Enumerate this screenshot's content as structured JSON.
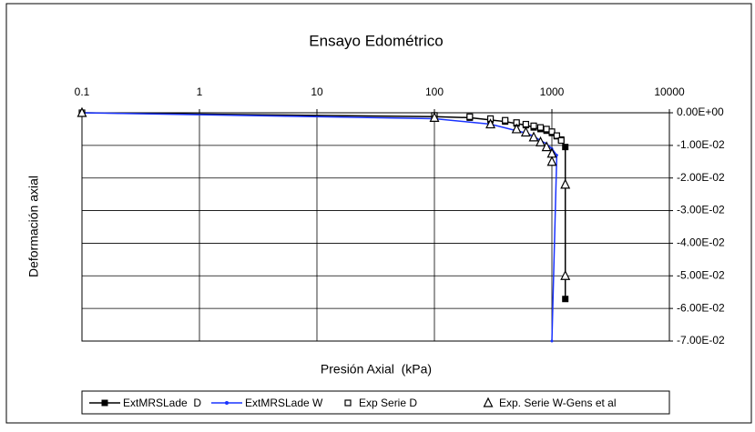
{
  "chart_data": {
    "type": "line",
    "title": "Ensayo Edométrico",
    "x_label": "Presión Axial  (kPa)",
    "y_label": "Deformación axial",
    "log_x": true,
    "grid": true,
    "legend": "bottom",
    "xlim": [
      0.1,
      10000
    ],
    "xticks": [
      0.1,
      1,
      10,
      100,
      1000,
      10000
    ],
    "ylim": [
      -0.07,
      0
    ],
    "yticks": [
      {
        "value": 0,
        "label": "0.00E+00"
      },
      {
        "value": -0.01,
        "label": "-1.00E-02"
      },
      {
        "value": -0.02,
        "label": "-2.00E-02"
      },
      {
        "value": -0.03,
        "label": "-3.00E-02"
      },
      {
        "value": -0.04,
        "label": "-4.00E-02"
      },
      {
        "value": -0.05,
        "label": "-5.00E-02"
      },
      {
        "value": -0.06,
        "label": "-6.00E-02"
      },
      {
        "value": -0.07,
        "label": "-7.00E-02"
      }
    ],
    "series": [
      {
        "name": "ExtMRSLade  D",
        "color": "#000000",
        "marker": "square-filled",
        "line": true,
        "x": [
          0.1,
          100,
          200,
          300,
          400,
          500,
          600,
          700,
          800,
          900,
          1000,
          1100,
          1200,
          1300,
          1300
        ],
        "values": [
          0,
          -0.0012,
          -0.0015,
          -0.0022,
          -0.0027,
          -0.0033,
          -0.0038,
          -0.0045,
          -0.005,
          -0.0055,
          -0.0062,
          -0.0072,
          -0.0082,
          -0.0105,
          -0.0571
        ]
      },
      {
        "name": "ExtMRSLade W",
        "color": "#1a33ff",
        "marker": "dot",
        "line": true,
        "x": [
          0.1,
          100,
          300,
          500,
          600,
          700,
          800,
          900,
          1000,
          1100,
          1000
        ],
        "values": [
          0,
          -0.0018,
          -0.0035,
          -0.0055,
          -0.0062,
          -0.0072,
          -0.0085,
          -0.0095,
          -0.011,
          -0.013,
          -0.07
        ]
      },
      {
        "name": "Exp Serie D",
        "color": "#000000",
        "marker": "square-open",
        "line": false,
        "x": [
          0.1,
          100,
          200,
          300,
          400,
          500,
          600,
          700,
          800,
          900,
          1000,
          1100,
          1200
        ],
        "values": [
          0,
          -0.0008,
          -0.0012,
          -0.0018,
          -0.0023,
          -0.003,
          -0.0035,
          -0.004,
          -0.0045,
          -0.005,
          -0.0058,
          -0.007,
          -0.0085
        ]
      },
      {
        "name": "Exp. Serie W-Gens et al",
        "color": "#000000",
        "marker": "triangle-open",
        "line": false,
        "x": [
          0.1,
          100,
          300,
          500,
          600,
          700,
          800,
          900,
          1000,
          1000,
          1300,
          1300
        ],
        "values": [
          0,
          -0.0015,
          -0.0035,
          -0.005,
          -0.006,
          -0.0075,
          -0.009,
          -0.0105,
          -0.0125,
          -0.015,
          -0.022,
          -0.05
        ]
      }
    ]
  }
}
